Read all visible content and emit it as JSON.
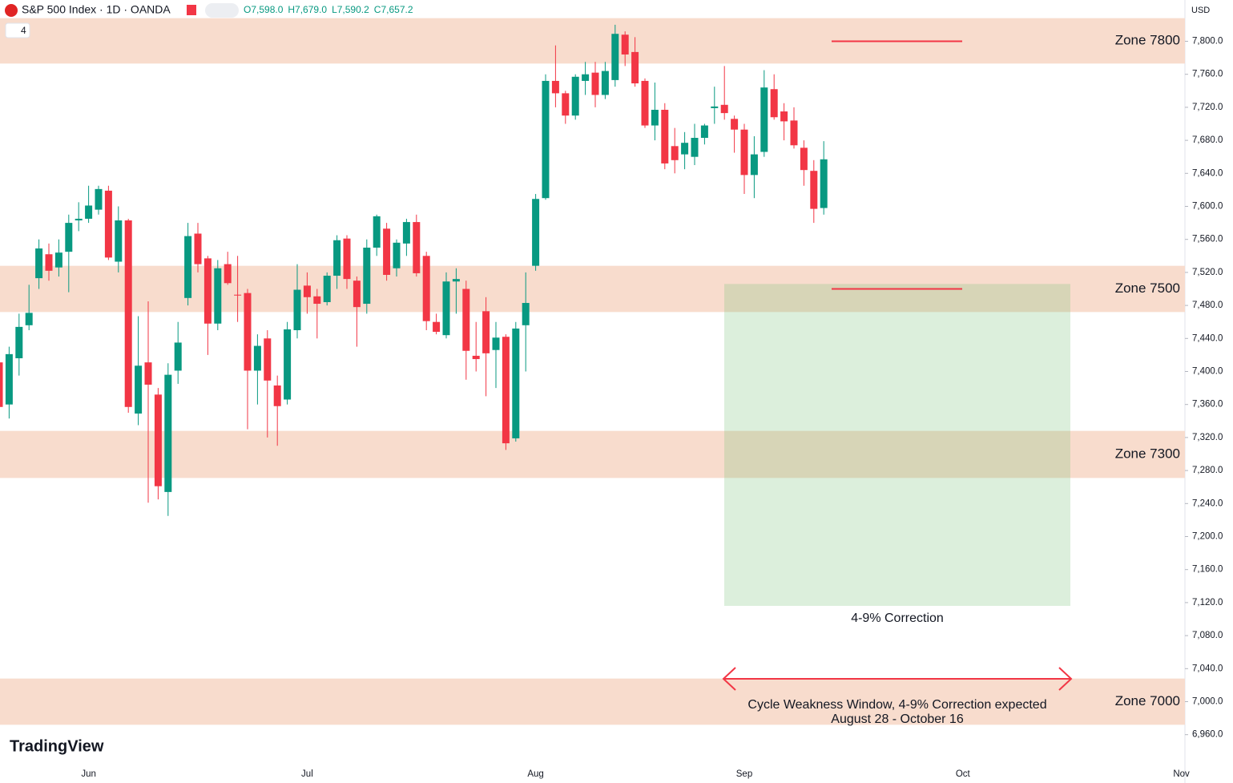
{
  "chart_data": {
    "type": "candlestick",
    "title": "S&P 500 Index · 1D · OANDA",
    "ohlc": [
      "O7,598.0",
      "H7,679.0",
      "L7,590.2",
      "C7,657.2"
    ],
    "currency": "USD",
    "indicator_count": "4",
    "brand": "TradingView",
    "up_color": "#089981",
    "down_color": "#f23645",
    "candles": [
      [
        7411,
        7420,
        7345,
        7357
      ],
      [
        7360,
        7430,
        7343,
        7421
      ],
      [
        7416,
        7470,
        7395,
        7454
      ],
      [
        7456,
        7505,
        7450,
        7471
      ],
      [
        7513,
        7560,
        7500,
        7549
      ],
      [
        7542,
        7555,
        7510,
        7522
      ],
      [
        7526,
        7560,
        7515,
        7544
      ],
      [
        7545,
        7590,
        7496,
        7580
      ],
      [
        7583,
        7605,
        7570,
        7585
      ],
      [
        7585,
        7625,
        7580,
        7601
      ],
      [
        7596,
        7625,
        7590,
        7621
      ],
      [
        7619,
        7625,
        7535,
        7538
      ],
      [
        7533,
        7600,
        7520,
        7583
      ],
      [
        7583,
        7585,
        7350,
        7357
      ],
      [
        7349,
        7467,
        7335,
        7407
      ],
      [
        7411,
        7485,
        7241,
        7384
      ],
      [
        7372,
        7380,
        7245,
        7261
      ],
      [
        7254,
        7410,
        7225,
        7396
      ],
      [
        7401,
        7460,
        7385,
        7435
      ],
      [
        7489,
        7580,
        7480,
        7564
      ],
      [
        7567,
        7580,
        7520,
        7530
      ],
      [
        7537,
        7540,
        7420,
        7458
      ],
      [
        7458,
        7535,
        7450,
        7525
      ],
      [
        7530,
        7545,
        7505,
        7507
      ],
      [
        7493,
        7540,
        7460,
        7492
      ],
      [
        7495,
        7500,
        7330,
        7401
      ],
      [
        7401,
        7445,
        7360,
        7431
      ],
      [
        7440,
        7450,
        7320,
        7389
      ],
      [
        7383,
        7395,
        7310,
        7358
      ],
      [
        7366,
        7460,
        7360,
        7451
      ],
      [
        7450,
        7530,
        7440,
        7499
      ],
      [
        7504,
        7520,
        7470,
        7490
      ],
      [
        7491,
        7500,
        7440,
        7482
      ],
      [
        7484,
        7520,
        7480,
        7516
      ],
      [
        7516,
        7565,
        7500,
        7559
      ],
      [
        7561,
        7565,
        7500,
        7512
      ],
      [
        7510,
        7515,
        7430,
        7478
      ],
      [
        7482,
        7560,
        7470,
        7550
      ],
      [
        7550,
        7590,
        7540,
        7588
      ],
      [
        7573,
        7580,
        7510,
        7517
      ],
      [
        7525,
        7560,
        7515,
        7556
      ],
      [
        7555,
        7585,
        7540,
        7581
      ],
      [
        7581,
        7590,
        7515,
        7519
      ],
      [
        7540,
        7545,
        7450,
        7461
      ],
      [
        7460,
        7470,
        7445,
        7448
      ],
      [
        7444,
        7520,
        7440,
        7509
      ],
      [
        7509,
        7525,
        7470,
        7512
      ],
      [
        7500,
        7510,
        7390,
        7425
      ],
      [
        7419,
        7460,
        7400,
        7415
      ],
      [
        7473,
        7490,
        7370,
        7422
      ],
      [
        7426,
        7460,
        7380,
        7441
      ],
      [
        7442,
        7445,
        7305,
        7313
      ],
      [
        7319,
        7460,
        7315,
        7452
      ],
      [
        7456,
        7520,
        7400,
        7483
      ],
      [
        7528,
        7615,
        7522,
        7609
      ],
      [
        7610,
        7760,
        7608,
        7752
      ],
      [
        7752,
        7795,
        7720,
        7737
      ],
      [
        7737,
        7740,
        7700,
        7710
      ],
      [
        7710,
        7760,
        7705,
        7757
      ],
      [
        7752,
        7775,
        7735,
        7760
      ],
      [
        7762,
        7775,
        7720,
        7735
      ],
      [
        7735,
        7775,
        7730,
        7764
      ],
      [
        7753,
        7820,
        7745,
        7809
      ],
      [
        7808,
        7812,
        7770,
        7784
      ],
      [
        7787,
        7805,
        7745,
        7749
      ],
      [
        7752,
        7755,
        7695,
        7698
      ],
      [
        7698,
        7750,
        7680,
        7717
      ],
      [
        7717,
        7725,
        7645,
        7652
      ],
      [
        7673,
        7695,
        7640,
        7656
      ],
      [
        7663,
        7690,
        7645,
        7677
      ],
      [
        7660,
        7700,
        7650,
        7683
      ],
      [
        7683,
        7700,
        7675,
        7698
      ],
      [
        7719,
        7745,
        7700,
        7721
      ],
      [
        7723,
        7770,
        7705,
        7713
      ],
      [
        7706,
        7710,
        7665,
        7693
      ],
      [
        7693,
        7700,
        7615,
        7638
      ],
      [
        7638,
        7685,
        7610,
        7663
      ],
      [
        7666,
        7765,
        7660,
        7744
      ],
      [
        7742,
        7760,
        7705,
        7708
      ],
      [
        7715,
        7725,
        7680,
        7703
      ],
      [
        7704,
        7720,
        7670,
        7674
      ],
      [
        7671,
        7680,
        7625,
        7644
      ],
      [
        7643,
        7656,
        7580,
        7597
      ],
      [
        7598,
        7679,
        7590,
        7657
      ]
    ],
    "xticks": [
      {
        "value": 9,
        "label": "Jun"
      },
      {
        "value": 31,
        "label": "Jul"
      },
      {
        "value": 54,
        "label": "Aug"
      },
      {
        "value": 75,
        "label": "Sep"
      },
      {
        "value": 97,
        "label": "Oct"
      },
      {
        "value": 119,
        "label": "Nov"
      }
    ],
    "ylim": [
      6940,
      7850
    ],
    "yticks": [
      {
        "value": 6960,
        "label": "6,960.0"
      },
      {
        "value": 7000,
        "label": "7,000.0"
      },
      {
        "value": 7040,
        "label": "7,040.0"
      },
      {
        "value": 7080,
        "label": "7,080.0"
      },
      {
        "value": 7120,
        "label": "7,120.0"
      },
      {
        "value": 7160,
        "label": "7,160.0"
      },
      {
        "value": 7200,
        "label": "7,200.0"
      },
      {
        "value": 7240,
        "label": "7,240.0"
      },
      {
        "value": 7280,
        "label": "7,280.0"
      },
      {
        "value": 7320,
        "label": "7,320.0"
      },
      {
        "value": 7360,
        "label": "7,360.0"
      },
      {
        "value": 7400,
        "label": "7,400.0"
      },
      {
        "value": 7440,
        "label": "7,440.0"
      },
      {
        "value": 7480,
        "label": "7,480.0"
      },
      {
        "value": 7520,
        "label": "7,520.0"
      },
      {
        "value": 7560,
        "label": "7,560.0"
      },
      {
        "value": 7600,
        "label": "7,600.0"
      },
      {
        "value": 7640,
        "label": "7,640.0"
      },
      {
        "value": 7680,
        "label": "7,680.0"
      },
      {
        "value": 7720,
        "label": "7,720.0"
      },
      {
        "value": 7760,
        "label": "7,760.0"
      },
      {
        "value": 7800,
        "label": "7,800.0"
      }
    ],
    "zones": [
      {
        "label": "Zone 7800",
        "low": 7773,
        "high": 7828
      },
      {
        "label": "Zone 7500",
        "low": 7472,
        "high": 7528
      },
      {
        "label": "Zone 7300",
        "low": 7271,
        "high": 7328
      },
      {
        "label": "Zone 7000",
        "low": 6972,
        "high": 7028
      }
    ],
    "levels": [
      7800,
      7500
    ],
    "correction_box": {
      "label": "4-9% Correction",
      "top": 7506,
      "bottom": 7116
    },
    "window": {
      "label": "Cycle Weakness Window, 4-9% Correction expected",
      "dates": "August 28 - October 16"
    }
  }
}
